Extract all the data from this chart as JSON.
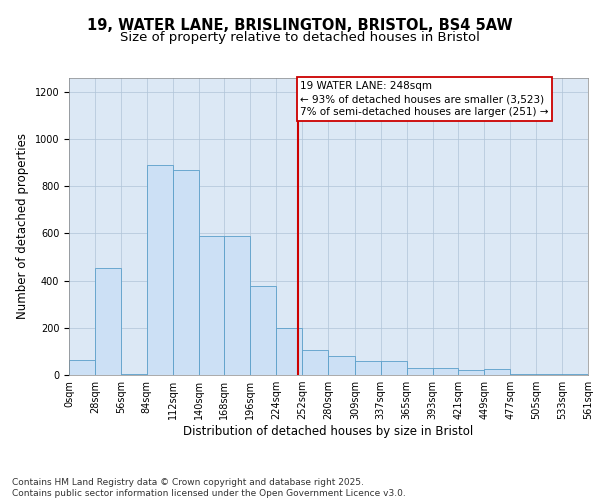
{
  "title_line1": "19, WATER LANE, BRISLINGTON, BRISTOL, BS4 5AW",
  "title_line2": "Size of property relative to detached houses in Bristol",
  "xlabel": "Distribution of detached houses by size in Bristol",
  "ylabel": "Number of detached properties",
  "bar_edges": [
    0,
    28,
    56,
    84,
    112,
    140,
    168,
    196,
    224,
    252,
    280,
    309,
    337,
    365,
    393,
    421,
    449,
    477,
    505,
    533,
    561
  ],
  "bar_heights": [
    65,
    455,
    5,
    890,
    870,
    590,
    590,
    375,
    200,
    105,
    80,
    60,
    60,
    30,
    30,
    20,
    25,
    5,
    5,
    5
  ],
  "bar_color": "#cce0f5",
  "bar_edge_color": "#5a9ec9",
  "background_color": "#dce8f5",
  "vline_x": 248,
  "vline_color": "#cc0000",
  "annotation_text": "19 WATER LANE: 248sqm\n← 93% of detached houses are smaller (3,523)\n7% of semi-detached houses are larger (251) →",
  "annotation_box_color": "#ffffff",
  "annotation_box_edge": "#cc0000",
  "ylim": [
    0,
    1260
  ],
  "yticks": [
    0,
    200,
    400,
    600,
    800,
    1000,
    1200
  ],
  "xtick_labels": [
    "0sqm",
    "28sqm",
    "56sqm",
    "84sqm",
    "112sqm",
    "140sqm",
    "168sqm",
    "196sqm",
    "224sqm",
    "252sqm",
    "280sqm",
    "309sqm",
    "337sqm",
    "365sqm",
    "393sqm",
    "421sqm",
    "449sqm",
    "477sqm",
    "505sqm",
    "533sqm",
    "561sqm"
  ],
  "footer_text": "Contains HM Land Registry data © Crown copyright and database right 2025.\nContains public sector information licensed under the Open Government Licence v3.0.",
  "title_fontsize": 10.5,
  "subtitle_fontsize": 9.5,
  "axis_label_fontsize": 8.5,
  "tick_fontsize": 7,
  "footer_fontsize": 6.5,
  "ann_fontsize": 7.5
}
